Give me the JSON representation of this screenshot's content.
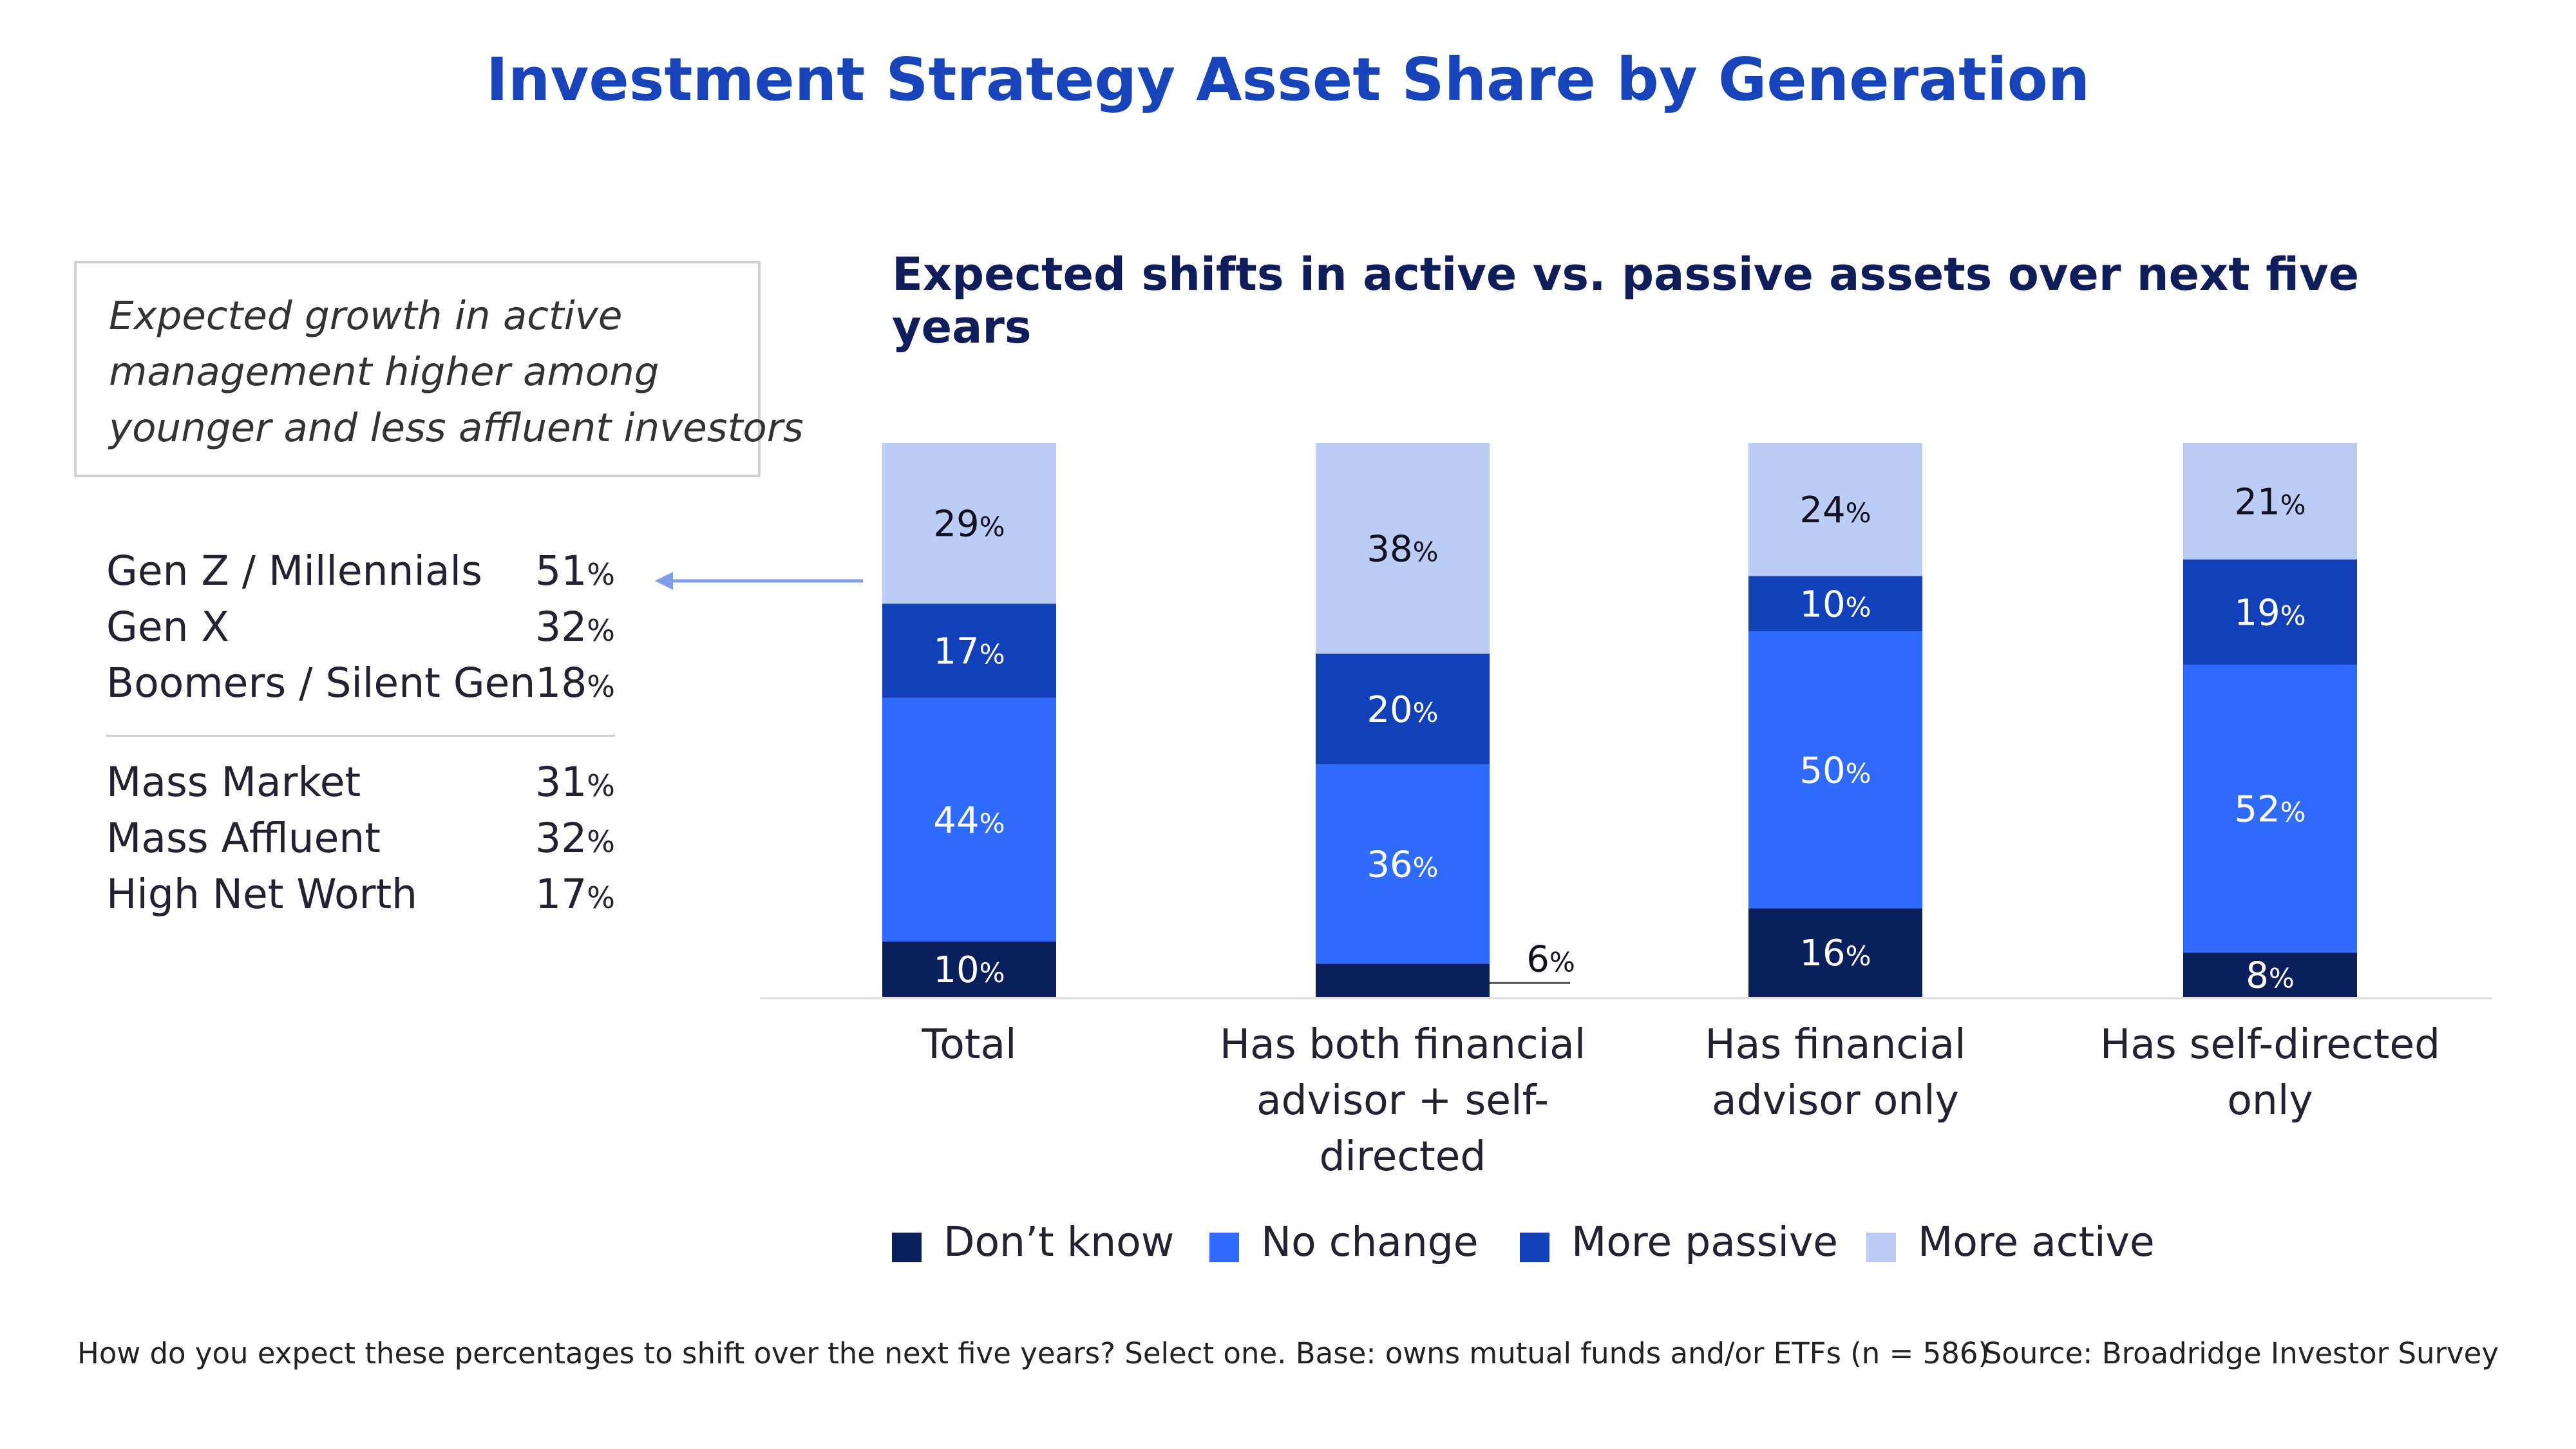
{
  "title": "Investment Strategy Asset Share by Generation",
  "callout": {
    "lines": [
      "Expected growth in active",
      "management higher among",
      "younger and less affluent investors"
    ]
  },
  "stats": {
    "group1": [
      {
        "label": "Gen Z / Millennials",
        "value": "51",
        "unit": "%"
      },
      {
        "label": "Gen X",
        "value": "32",
        "unit": "%"
      },
      {
        "label": "Boomers / Silent Gen",
        "value": "18",
        "unit": "%"
      }
    ],
    "group2": [
      {
        "label": "Mass Market",
        "value": "31",
        "unit": "%"
      },
      {
        "label": "Mass Affluent",
        "value": "32",
        "unit": "%"
      },
      {
        "label": "High Net Worth",
        "value": "17",
        "unit": "%"
      }
    ]
  },
  "colors": {
    "dont_know": "#0a1f5c",
    "no_change": "#2f6bff",
    "more_passive": "#1240b8",
    "more_active": "#bccdf5",
    "title": "#1744b8",
    "arrow": "#7f9ee8"
  },
  "chart_data": {
    "type": "bar",
    "stacked": true,
    "title": "Expected shifts in active vs. passive assets over next five years",
    "categories": [
      [
        "Total"
      ],
      [
        "Has both financial",
        "advisor + self-directed"
      ],
      [
        "Has financial",
        "advisor only"
      ],
      [
        "Has self-directed",
        "only"
      ]
    ],
    "series": [
      {
        "name": "Don’t know",
        "key": "dont_know",
        "values": [
          10,
          6,
          16,
          8
        ]
      },
      {
        "name": "No change",
        "key": "no_change",
        "values": [
          44,
          36,
          50,
          52
        ]
      },
      {
        "name": "More passive",
        "key": "more_passive",
        "values": [
          17,
          20,
          10,
          19
        ]
      },
      {
        "name": "More active",
        "key": "more_active",
        "values": [
          29,
          38,
          24,
          21
        ]
      }
    ],
    "unit": "%",
    "ylim": [
      0,
      100
    ],
    "legend_position": "bottom"
  },
  "footnote": "How do you expect these percentages to shift over the next five years? Select one. Base: owns mutual funds and/or ETFs  (n = 586)",
  "source": "Source: Broadridge Investor Survey"
}
